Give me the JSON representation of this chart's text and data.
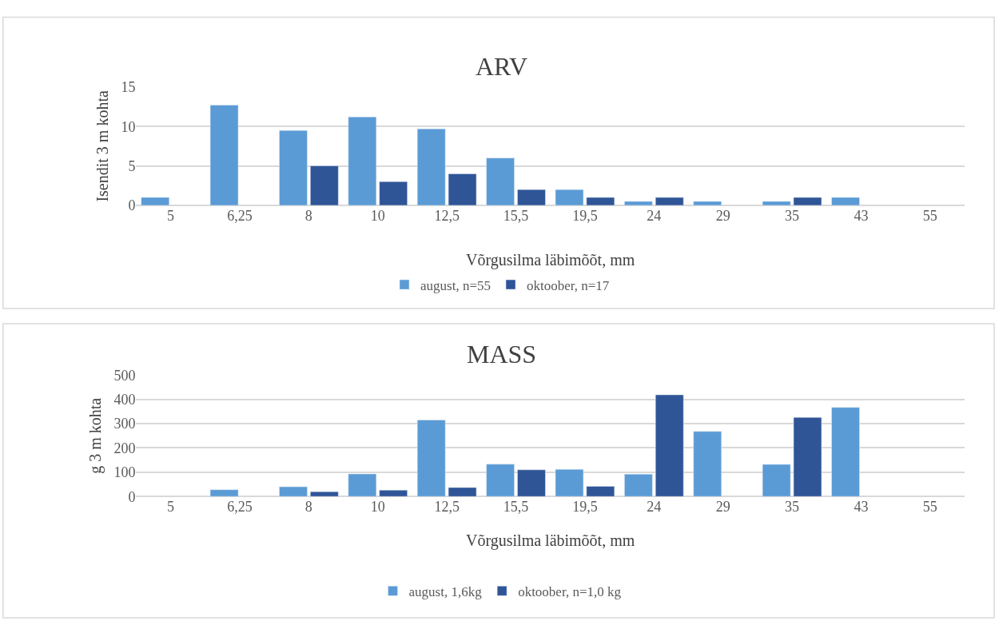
{
  "chart_data": [
    {
      "type": "bar",
      "title": "ARV",
      "xlabel": "Võrgusilma läbimõõt, mm",
      "ylabel": "Isendit 3 m kohta",
      "categories": [
        "5",
        "6,25",
        "8",
        "10",
        "12,5",
        "15,5",
        "19,5",
        "24",
        "29",
        "35",
        "43",
        "55"
      ],
      "series": [
        {
          "name": "august, n=55",
          "color": "#5b9bd5",
          "values": [
            1,
            12.7,
            9.5,
            11.2,
            9.7,
            6,
            2,
            0.5,
            0.5,
            0.5,
            1,
            null
          ]
        },
        {
          "name": "oktoober, n=17",
          "color": "#2f5597",
          "values": [
            null,
            null,
            5,
            3,
            4,
            2,
            1,
            1,
            null,
            1,
            null,
            null
          ]
        }
      ],
      "ylim": [
        0,
        15
      ],
      "yticks": [
        0,
        5,
        10,
        15
      ],
      "grid": "y",
      "legend": "bottom"
    },
    {
      "type": "bar",
      "title": "MASS",
      "xlabel": "Võrgusilma läbimõõt, mm",
      "ylabel": "g 3 m kohta",
      "categories": [
        "5",
        "6,25",
        "8",
        "10",
        "12,5",
        "15,5",
        "19,5",
        "24",
        "29",
        "35",
        "43",
        "55"
      ],
      "series": [
        {
          "name": "august, 1,6kg",
          "color": "#5b9bd5",
          "values": [
            null,
            28,
            40,
            93,
            315,
            133,
            112,
            92,
            268,
            132,
            367,
            null
          ]
        },
        {
          "name": "oktoober, n=1,0 kg",
          "color": "#2f5597",
          "values": [
            null,
            null,
            20,
            26,
            37,
            110,
            42,
            419,
            null,
            326,
            null,
            null
          ]
        }
      ],
      "ylim": [
        0,
        500
      ],
      "yticks": [
        0,
        100,
        200,
        300,
        400,
        500
      ],
      "grid": "y",
      "legend": "bottom"
    }
  ]
}
